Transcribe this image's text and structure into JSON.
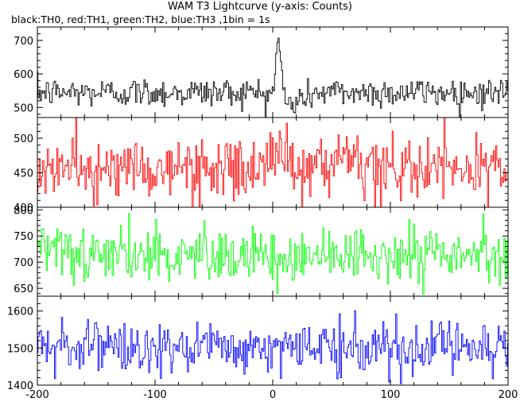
{
  "title": "WAM T3 Lightcurve (y-axis: Counts)",
  "subtitle": "black:TH0, red:TH1, green:TH2, blue:TH3 ,1bin = 1s",
  "chart_data": {
    "type": "line",
    "xlim": [
      -200,
      200
    ],
    "x_ticks": [
      -200,
      -100,
      0,
      100,
      200
    ],
    "grid": false,
    "bin_seconds": 1,
    "panels": [
      {
        "color": "#000000",
        "ylim": [
          470,
          740
        ],
        "y_ticks": [
          500,
          600,
          700
        ],
        "baseline": 545,
        "noise": 22,
        "features": [
          {
            "center": 5,
            "width": 2.5,
            "amplitude": 165
          },
          {
            "center": 14,
            "width": 10,
            "amplitude": -35
          }
        ],
        "x": [
          -200,
          -150,
          -100,
          -50,
          -10,
          0,
          3,
          5,
          7,
          10,
          15,
          20,
          50,
          100,
          150,
          200
        ],
        "y": [
          545,
          545,
          550,
          550,
          550,
          590,
          650,
          715,
          650,
          580,
          510,
          530,
          550,
          555,
          560,
          555
        ]
      },
      {
        "color": "#ff0000",
        "ylim": [
          400,
          530
        ],
        "y_ticks": [
          400,
          450,
          500
        ],
        "baseline": 455,
        "noise": 22,
        "features": [
          {
            "center": 5,
            "width": 6,
            "amplitude": 35
          }
        ],
        "x": [
          -200,
          -150,
          -100,
          -50,
          0,
          5,
          10,
          50,
          100,
          150,
          200
        ],
        "y": [
          455,
          460,
          455,
          455,
          470,
          495,
          470,
          460,
          460,
          465,
          465
        ]
      },
      {
        "color": "#00ff00",
        "ylim": [
          635,
          805
        ],
        "y_ticks": [
          650,
          700,
          750,
          800
        ],
        "baseline": 715,
        "noise": 26,
        "features": [],
        "x": [
          -200,
          -100,
          0,
          100,
          200
        ],
        "y": [
          715,
          715,
          718,
          715,
          715
        ]
      },
      {
        "color": "#0000ff",
        "ylim": [
          1400,
          1640
        ],
        "y_ticks": [
          1400,
          1500,
          1600
        ],
        "baseline": 1500,
        "noise": 35,
        "features": [],
        "x": [
          -200,
          -100,
          0,
          100,
          200
        ],
        "y": [
          1495,
          1490,
          1505,
          1510,
          1515
        ]
      }
    ]
  }
}
